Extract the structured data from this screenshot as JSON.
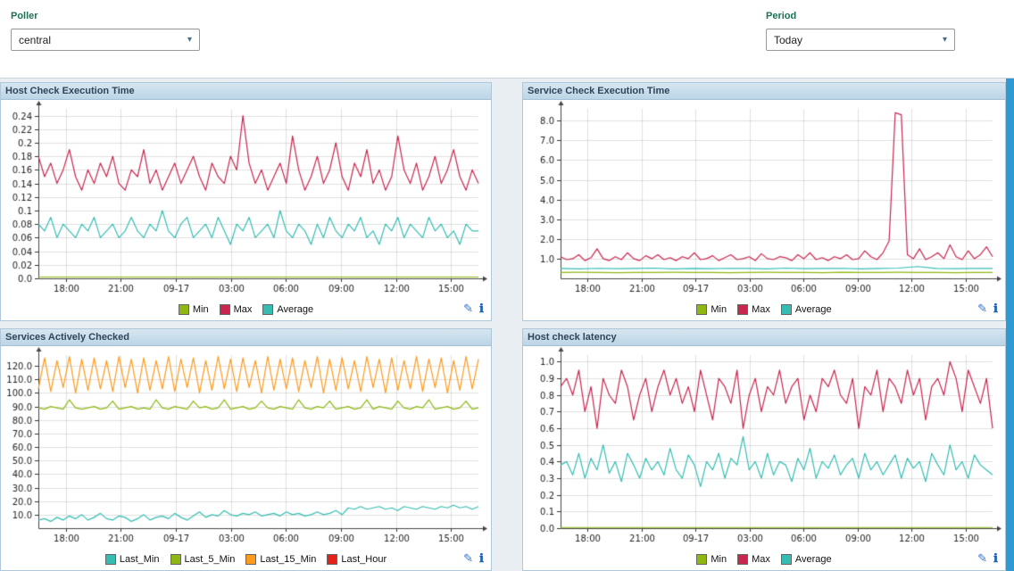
{
  "top_bar": {
    "poller_label": "Poller",
    "poller_value": "central",
    "period_label": "Period",
    "period_value": "Today"
  },
  "icons": {
    "dropdown_caret": "▾",
    "edit_glyph": "✎",
    "info_glyph": "ℹ"
  },
  "colors": {
    "panel_header_bg": "#c7dcea",
    "right_strip": "#2f9ad2",
    "min_green": "#8cb811",
    "max_crimson": "#c9264e",
    "average_teal": "#35bdb2",
    "last_15_min_orange": "#fe9a1b",
    "last_hour_red": "#e32219"
  },
  "chart_data": [
    {
      "type": "line",
      "title": "Host Check Execution Time",
      "ylim": [
        0,
        0.25
      ],
      "yticks": [
        "0.24",
        "0.22",
        "0.2",
        "0.18",
        "0.16",
        "0.14",
        "0.12",
        "0.1",
        "0.08",
        "0.06",
        "0.04",
        "0.02",
        "0.0"
      ],
      "xticks": [
        "18:00",
        "21:00",
        "09-17",
        "03:00",
        "06:00",
        "09:00",
        "12:00",
        "15:00"
      ],
      "legend_position": "bottom",
      "grid": true,
      "series": [
        {
          "name": "Min",
          "color": "#8cb811",
          "values": [
            0.002,
            0.002
          ]
        },
        {
          "name": "Max",
          "color": "#c9264e",
          "values": [
            0.18,
            0.15,
            0.17,
            0.14,
            0.16,
            0.19,
            0.15,
            0.13,
            0.16,
            0.14,
            0.17,
            0.15,
            0.18,
            0.14,
            0.13,
            0.16,
            0.15,
            0.19,
            0.14,
            0.16,
            0.13,
            0.15,
            0.17,
            0.14,
            0.16,
            0.18,
            0.15,
            0.13,
            0.17,
            0.15,
            0.14,
            0.18,
            0.16,
            0.24,
            0.17,
            0.14,
            0.16,
            0.13,
            0.15,
            0.17,
            0.14,
            0.21,
            0.16,
            0.13,
            0.15,
            0.18,
            0.14,
            0.16,
            0.2,
            0.15,
            0.13,
            0.17,
            0.15,
            0.19,
            0.14,
            0.16,
            0.13,
            0.15,
            0.21,
            0.16,
            0.14,
            0.17,
            0.13,
            0.15,
            0.18,
            0.14,
            0.16,
            0.19,
            0.15,
            0.13,
            0.16,
            0.14
          ]
        },
        {
          "name": "Average",
          "color": "#35bdb2",
          "values": [
            0.08,
            0.07,
            0.09,
            0.06,
            0.08,
            0.07,
            0.06,
            0.08,
            0.07,
            0.09,
            0.06,
            0.07,
            0.08,
            0.06,
            0.07,
            0.09,
            0.07,
            0.06,
            0.08,
            0.07,
            0.1,
            0.07,
            0.06,
            0.08,
            0.09,
            0.06,
            0.07,
            0.08,
            0.06,
            0.09,
            0.07,
            0.05,
            0.08,
            0.07,
            0.09,
            0.06,
            0.07,
            0.08,
            0.06,
            0.1,
            0.07,
            0.06,
            0.08,
            0.07,
            0.05,
            0.08,
            0.06,
            0.09,
            0.07,
            0.06,
            0.08,
            0.07,
            0.09,
            0.06,
            0.07,
            0.05,
            0.08,
            0.07,
            0.09,
            0.06,
            0.08,
            0.07,
            0.06,
            0.09,
            0.07,
            0.08,
            0.06,
            0.07,
            0.05,
            0.08,
            0.07,
            0.07
          ]
        }
      ]
    },
    {
      "type": "line",
      "title": "Service Check Execution Time",
      "ylim": [
        0,
        8.6
      ],
      "yticks": [
        "8.0",
        "7.0",
        "6.0",
        "5.0",
        "4.0",
        "3.0",
        "2.0",
        "1.0"
      ],
      "xticks": [
        "18:00",
        "21:00",
        "09-17",
        "03:00",
        "06:00",
        "09:00",
        "12:00",
        "15:00"
      ],
      "legend_position": "bottom",
      "grid": true,
      "series": [
        {
          "name": "Min",
          "color": "#8cb811",
          "values": [
            0.3,
            0.31,
            0.3,
            0.29,
            0.3,
            0.3,
            0.31,
            0.3,
            0.3,
            0.29,
            0.3,
            0.31,
            0.3,
            0.3,
            0.29,
            0.31,
            0.3,
            0.3,
            0.31,
            0.3,
            0.3,
            0.29,
            0.3,
            0.3
          ]
        },
        {
          "name": "Max",
          "color": "#c9264e",
          "values": [
            1.1,
            0.95,
            1.0,
            1.2,
            0.9,
            1.05,
            1.5,
            1.0,
            0.9,
            1.1,
            0.95,
            1.3,
            1.0,
            0.9,
            1.15,
            1.0,
            1.2,
            0.95,
            1.05,
            0.9,
            1.1,
            1.0,
            1.3,
            0.95,
            1.0,
            1.15,
            0.9,
            1.05,
            1.2,
            0.95,
            1.0,
            1.1,
            0.9,
            1.25,
            1.0,
            0.95,
            1.1,
            1.05,
            0.9,
            1.2,
            1.0,
            1.3,
            0.95,
            1.05,
            0.9,
            1.1,
            1.0,
            1.2,
            0.95,
            1.0,
            1.4,
            1.1,
            0.95,
            1.3,
            1.9,
            8.4,
            8.3,
            1.2,
            1.0,
            1.5,
            0.95,
            1.1,
            1.3,
            1.0,
            1.7,
            1.1,
            0.95,
            1.4,
            1.0,
            1.2,
            1.6,
            1.1
          ]
        },
        {
          "name": "Average",
          "color": "#35bdb2",
          "values": [
            0.5,
            0.48,
            0.51,
            0.49,
            0.5,
            0.52,
            0.48,
            0.5,
            0.49,
            0.51,
            0.5,
            0.48,
            0.52,
            0.49,
            0.5,
            0.51,
            0.48,
            0.5,
            0.52,
            0.6,
            0.5,
            0.49,
            0.5,
            0.5
          ]
        }
      ]
    },
    {
      "type": "line",
      "title": "Services Actively Checked",
      "ylim": [
        0,
        128
      ],
      "yticks": [
        "120.0",
        "110.0",
        "100.0",
        "90.0",
        "80.0",
        "70.0",
        "60.0",
        "50.0",
        "40.0",
        "30.0",
        "20.0",
        "10.0"
      ],
      "xticks": [
        "18:00",
        "21:00",
        "09-17",
        "03:00",
        "06:00",
        "09:00",
        "12:00",
        "15:00"
      ],
      "legend_position": "bottom",
      "grid": true,
      "series": [
        {
          "name": "Last_Min",
          "color": "#35bdb2",
          "values": [
            6,
            7,
            5,
            8,
            6,
            9,
            7,
            10,
            6,
            8,
            11,
            7,
            6,
            9,
            8,
            5,
            7,
            10,
            6,
            8,
            9,
            7,
            11,
            8,
            6,
            9,
            12,
            8,
            10,
            9,
            13,
            10,
            9,
            11,
            10,
            12,
            9,
            10,
            11,
            9,
            12,
            10,
            11,
            9,
            10,
            12,
            10,
            11,
            13,
            10,
            15,
            14,
            16,
            14,
            15,
            16,
            14,
            15,
            13,
            16,
            15,
            14,
            16,
            15,
            14,
            16,
            15,
            17,
            15,
            16,
            14,
            16
          ]
        },
        {
          "name": "Last_5_Min",
          "color": "#8cb811",
          "values": [
            89,
            88,
            90,
            89,
            88,
            95,
            89,
            88,
            89,
            90,
            88,
            89,
            94,
            88,
            89,
            90,
            88,
            89,
            88,
            95,
            89,
            88,
            90,
            89,
            88,
            94,
            89,
            90,
            88,
            89,
            95,
            88,
            89,
            90,
            88,
            89,
            94,
            89,
            88,
            90,
            89,
            88,
            95,
            89,
            88,
            90,
            89,
            94,
            88,
            89,
            90,
            88,
            89,
            95,
            88,
            90,
            89,
            88,
            94,
            89,
            88,
            90,
            89,
            95,
            88,
            89,
            90,
            88,
            89,
            94,
            88,
            89
          ]
        },
        {
          "name": "Last_15_Min",
          "color": "#fe9a1b",
          "values": [
            103,
            126,
            101,
            124,
            104,
            127,
            100,
            125,
            102,
            126,
            103,
            124,
            101,
            127,
            104,
            125,
            100,
            126,
            102,
            124,
            103,
            127,
            101,
            125,
            104,
            126,
            100,
            124,
            102,
            127,
            103,
            125,
            101,
            126,
            104,
            124,
            100,
            127,
            102,
            125,
            103,
            126,
            101,
            124,
            104,
            127,
            100,
            125,
            102,
            126,
            103,
            124,
            101,
            127,
            104,
            125,
            100,
            126,
            102,
            124,
            103,
            127,
            101,
            125,
            104,
            126,
            100,
            124,
            102,
            127,
            103,
            125
          ]
        },
        {
          "name": "Last_Hour",
          "color": "#e32219",
          "values": []
        }
      ]
    },
    {
      "type": "line",
      "title": "Host check latency",
      "ylim": [
        0,
        1.04
      ],
      "yticks": [
        "1.0",
        "0.9",
        "0.8",
        "0.7",
        "0.6",
        "0.5",
        "0.4",
        "0.3",
        "0.2",
        "0.1",
        "0.0"
      ],
      "xticks": [
        "18:00",
        "21:00",
        "09-17",
        "03:00",
        "06:00",
        "09:00",
        "12:00",
        "15:00"
      ],
      "legend_position": "bottom",
      "grid": true,
      "series": [
        {
          "name": "Min",
          "color": "#8cb811",
          "values": [
            0.004,
            0.004
          ]
        },
        {
          "name": "Max",
          "color": "#c9264e",
          "values": [
            0.85,
            0.9,
            0.8,
            0.95,
            0.7,
            0.85,
            0.6,
            0.9,
            0.8,
            0.75,
            0.95,
            0.85,
            0.65,
            0.8,
            0.9,
            0.7,
            0.85,
            0.95,
            0.8,
            0.9,
            0.75,
            0.85,
            0.7,
            0.95,
            0.8,
            0.65,
            0.9,
            0.85,
            0.75,
            0.95,
            0.6,
            0.8,
            0.9,
            0.7,
            0.85,
            0.8,
            0.95,
            0.75,
            0.85,
            0.9,
            0.65,
            0.8,
            0.7,
            0.9,
            0.85,
            0.95,
            0.8,
            0.75,
            0.9,
            0.6,
            0.85,
            0.8,
            0.95,
            0.7,
            0.9,
            0.85,
            0.75,
            0.95,
            0.8,
            0.9,
            0.65,
            0.85,
            0.9,
            0.8,
            1.0,
            0.9,
            0.7,
            0.95,
            0.85,
            0.75,
            0.9,
            0.6
          ]
        },
        {
          "name": "Average",
          "color": "#35bdb2",
          "values": [
            0.38,
            0.4,
            0.32,
            0.45,
            0.3,
            0.42,
            0.35,
            0.5,
            0.33,
            0.4,
            0.28,
            0.45,
            0.38,
            0.3,
            0.42,
            0.35,
            0.4,
            0.32,
            0.48,
            0.35,
            0.3,
            0.44,
            0.38,
            0.25,
            0.4,
            0.35,
            0.45,
            0.3,
            0.42,
            0.38,
            0.55,
            0.35,
            0.4,
            0.3,
            0.45,
            0.32,
            0.4,
            0.38,
            0.28,
            0.42,
            0.35,
            0.48,
            0.3,
            0.4,
            0.36,
            0.44,
            0.32,
            0.38,
            0.42,
            0.3,
            0.45,
            0.35,
            0.4,
            0.32,
            0.38,
            0.44,
            0.3,
            0.42,
            0.36,
            0.4,
            0.28,
            0.45,
            0.38,
            0.32,
            0.5,
            0.35,
            0.4,
            0.3,
            0.44,
            0.38,
            0.35,
            0.32
          ]
        }
      ]
    }
  ]
}
